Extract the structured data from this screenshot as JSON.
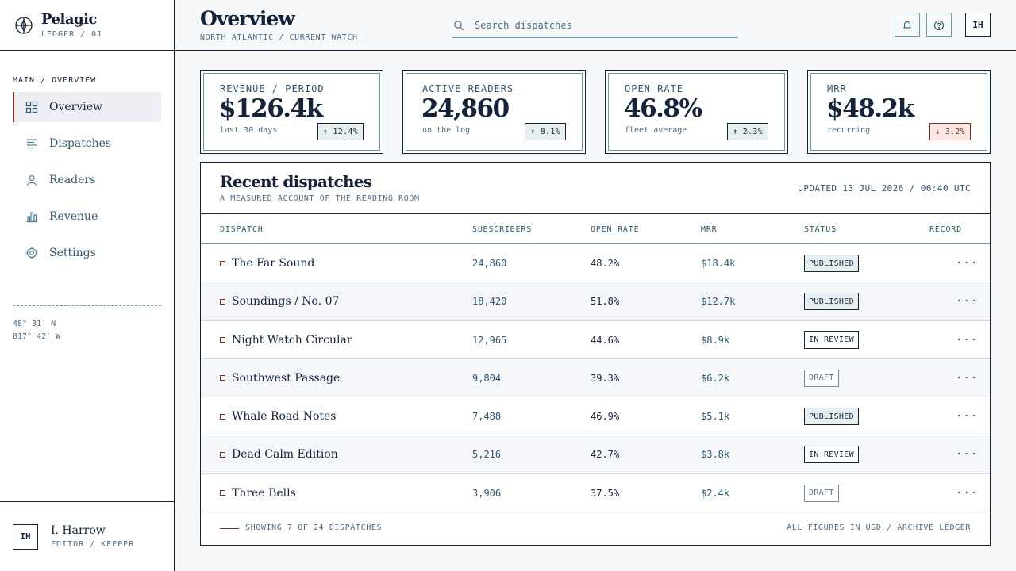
{
  "brand": {
    "name": "Pelagic",
    "sub": "LEDGER / 01",
    "logo_icon": "compass-icon"
  },
  "sidebar": {
    "section": "MAIN / OVERVIEW",
    "items": [
      {
        "label": "Overview",
        "icon": "grid-icon"
      },
      {
        "label": "Dispatches",
        "icon": "list-icon"
      },
      {
        "label": "Readers",
        "icon": "user-icon"
      },
      {
        "label": "Revenue",
        "icon": "bar-chart-icon"
      },
      {
        "label": "Settings",
        "icon": "gear-icon"
      }
    ],
    "coords": {
      "lat": "48° 31′ N",
      "lon": "017° 42′ W"
    }
  },
  "user": {
    "initials": "IH",
    "name": "I. Harrow",
    "role": "EDITOR / KEEPER"
  },
  "header": {
    "title": "Overview",
    "sub": "NORTH ATLANTIC / CURRENT WATCH",
    "search_placeholder": "Search dispatches",
    "avatar": "IH"
  },
  "kpis": [
    {
      "label": "REVENUE / PERIOD",
      "value": "$126.4k",
      "note": "last 30 days",
      "delta": "↑ 12.4%"
    },
    {
      "label": "ACTIVE READERS",
      "value": "24,860",
      "note": "on the log",
      "delta": "↑ 8.1%"
    },
    {
      "label": "OPEN RATE",
      "value": "46.8%",
      "note": "fleet average",
      "delta": "↑ 2.3%"
    },
    {
      "label": "MRR",
      "value": "$48.2k",
      "note": "recurring",
      "delta": "↓ 3.2%"
    }
  ],
  "table": {
    "title": "Recent dispatches",
    "sub": "A MEASURED ACCOUNT OF THE READING ROOM",
    "updated": "UPDATED 13 JUL 2026 / 06:40 UTC",
    "columns": [
      "DISPATCH",
      "SUBSCRIBERS",
      "OPEN RATE",
      "MRR",
      "STATUS",
      "RECORD"
    ],
    "rows": [
      {
        "name": "The Far Sound",
        "subs": "24,860",
        "open": "48.2%",
        "mrr": "$18.4k",
        "status": "PUBLISHED",
        "record": "···"
      },
      {
        "name": "Soundings / No. 07",
        "subs": "18,420",
        "open": "51.8%",
        "mrr": "$12.7k",
        "status": "PUBLISHED",
        "record": "···"
      },
      {
        "name": "Night Watch Circular",
        "subs": "12,965",
        "open": "44.6%",
        "mrr": "$8.9k",
        "status": "IN REVIEW",
        "record": "···"
      },
      {
        "name": "Southwest Passage",
        "subs": "9,804",
        "open": "39.3%",
        "mrr": "$6.2k",
        "status": "DRAFT",
        "record": "···"
      },
      {
        "name": "Whale Road Notes",
        "subs": "7,488",
        "open": "46.9%",
        "mrr": "$5.1k",
        "status": "PUBLISHED",
        "record": "···"
      },
      {
        "name": "Dead Calm Edition",
        "subs": "5,216",
        "open": "42.7%",
        "mrr": "$3.8k",
        "status": "IN REVIEW",
        "record": "···"
      },
      {
        "name": "Three Bells",
        "subs": "3,906",
        "open": "37.5%",
        "mrr": "$2.4k",
        "status": "DRAFT",
        "record": "···"
      }
    ],
    "footer_left": "SHOWING 7 OF 24 DISPATCHES",
    "footer_right": "ALL FIGURES IN USD / ARCHIVE LEDGER"
  },
  "colors": {
    "ink": "#14233a",
    "accent": "#7a2f22",
    "teal": "#6a9aa8",
    "muted": "#4e6a82"
  }
}
